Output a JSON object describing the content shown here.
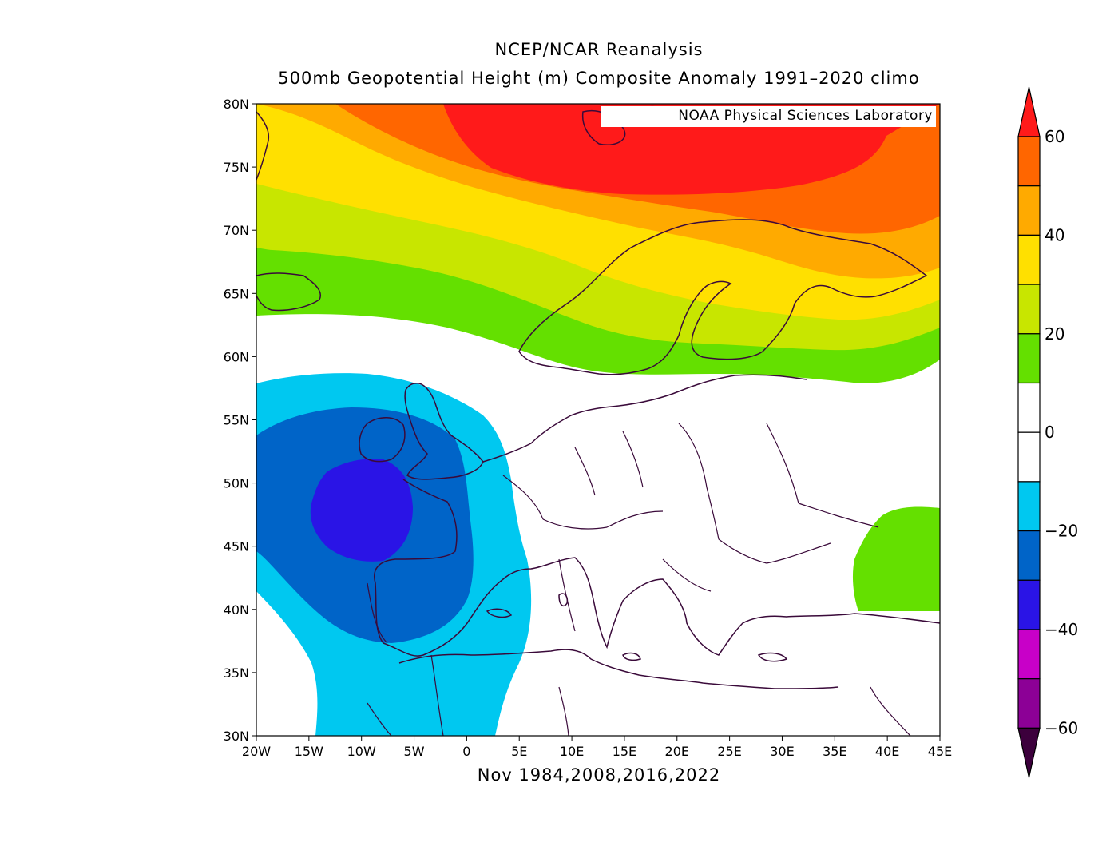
{
  "titles": {
    "line1": "NCEP/NCAR Reanalysis",
    "line2": "500mb Geopotential Height (m) Composite Anomaly 1991–2020 climo",
    "xlabel": "Nov 1984,2008,2016,2022",
    "credit": "NOAA Physical Sciences Laboratory"
  },
  "map": {
    "projection": "equirectangular",
    "lon_range": [
      -20,
      45
    ],
    "lat_range": [
      30,
      80
    ],
    "lon_ticks": [
      "20W",
      "15W",
      "10W",
      "5W",
      "0",
      "5E",
      "10E",
      "15E",
      "20E",
      "25E",
      "30E",
      "35E",
      "40E",
      "45E"
    ],
    "lat_ticks": [
      "30N",
      "35N",
      "40N",
      "45N",
      "50N",
      "55N",
      "60N",
      "65N",
      "70N",
      "75N",
      "80N"
    ],
    "coastline_color": "#3a0a3a"
  },
  "colorbar": {
    "unit": "m",
    "labels": [
      "60",
      "40",
      "20",
      "0",
      "−20",
      "−40",
      "−60"
    ],
    "bins": [
      {
        "range": [
          60,
          999
        ],
        "color": "#ff1a1a"
      },
      {
        "range": [
          50,
          60
        ],
        "color": "#ff6600"
      },
      {
        "range": [
          40,
          50
        ],
        "color": "#ffaa00"
      },
      {
        "range": [
          30,
          40
        ],
        "color": "#ffe000"
      },
      {
        "range": [
          20,
          30
        ],
        "color": "#c8e600"
      },
      {
        "range": [
          10,
          20
        ],
        "color": "#64e000"
      },
      {
        "range": [
          0,
          10
        ],
        "color": "#ffffff"
      },
      {
        "range": [
          -10,
          0
        ],
        "color": "#ffffff"
      },
      {
        "range": [
          -20,
          -10
        ],
        "color": "#00c8f0"
      },
      {
        "range": [
          -30,
          -20
        ],
        "color": "#0064c8"
      },
      {
        "range": [
          -40,
          -30
        ],
        "color": "#2a14e6"
      },
      {
        "range": [
          -50,
          -40
        ],
        "color": "#c800c8"
      },
      {
        "range": [
          -60,
          -50
        ],
        "color": "#8c0096"
      },
      {
        "range": [
          -999,
          -60
        ],
        "color": "#3c003c"
      }
    ]
  },
  "anomaly_regions": [
    {
      "level": "10..20",
      "color": "#64e000",
      "location": "central Scandinavia / Norwegian Sea band"
    },
    {
      "level": "20..60+",
      "color": "#ff1a1a",
      "location": "Barents Sea maximum"
    },
    {
      "level": "-10..-20",
      "color": "#00c8f0",
      "location": "eastern Atlantic / Iberia"
    },
    {
      "level": "-20..-30",
      "color": "#0064c8",
      "location": "Bay of Biscay"
    },
    {
      "level": "-30..-40",
      "color": "#2a14e6",
      "location": "west of Brittany"
    },
    {
      "level": "10..20",
      "color": "#64e000",
      "location": "Caspian region"
    }
  ]
}
